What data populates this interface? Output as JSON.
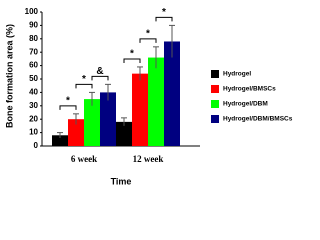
{
  "chart_data": {
    "type": "bar",
    "x_label": "Time",
    "y_label": "Bone formation area (%)",
    "categories": [
      "6 week",
      "12 week"
    ],
    "series": [
      {
        "name": "Hydrogel",
        "color": "#000000",
        "values": [
          8,
          18
        ],
        "errors": [
          2,
          3
        ]
      },
      {
        "name": "Hydrogel/BMSCs",
        "color": "#ff0000",
        "values": [
          20,
          54
        ],
        "errors": [
          4,
          5
        ]
      },
      {
        "name": "Hydrogel/DBM",
        "color": "#00ff00",
        "values": [
          35,
          66
        ],
        "errors": [
          5,
          8
        ]
      },
      {
        "name": "Hydrogel/DBM/BMSCs",
        "color": "#000080",
        "values": [
          40,
          78
        ],
        "errors": [
          6,
          12
        ]
      }
    ],
    "annotations": [
      "*",
      "*",
      "&",
      "*",
      "*",
      "*"
    ],
    "ylim": [
      0,
      100
    ],
    "yticks": [
      0,
      10,
      20,
      30,
      40,
      50,
      60,
      70,
      80,
      90,
      100
    ],
    "grid": false
  }
}
